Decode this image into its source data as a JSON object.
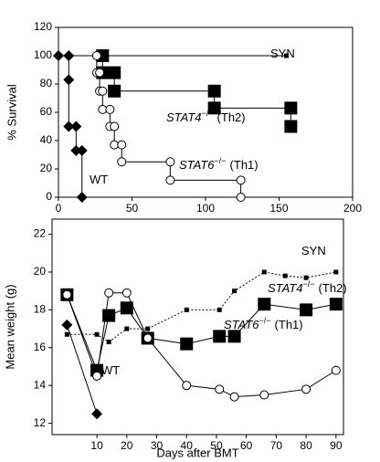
{
  "chart_data": [
    {
      "type": "line",
      "step": true,
      "ylabel": "% Survival",
      "xlim": [
        0,
        200
      ],
      "xticks": [
        0,
        50,
        100,
        150,
        200
      ],
      "ylim": [
        0,
        120
      ],
      "yticks": [
        0,
        20,
        40,
        60,
        80,
        100,
        120
      ],
      "series": [
        {
          "name": "SYN",
          "color": "#000000",
          "marker": "small-square",
          "dash": false,
          "x": [
            0,
            155
          ],
          "values": [
            100,
            100
          ]
        },
        {
          "name": "WT",
          "color": "#000000",
          "marker": "diamond",
          "dash": false,
          "x": [
            0,
            7,
            7,
            7,
            12,
            12,
            16,
            16
          ],
          "values": [
            100,
            100,
            83,
            50,
            50,
            33,
            33,
            0
          ]
        },
        {
          "name": "STAT4",
          "color": "#000000",
          "marker": "square",
          "dash": false,
          "x": [
            30,
            30,
            38,
            38,
            106,
            106,
            158,
            158
          ],
          "values": [
            100,
            88,
            88,
            75,
            75,
            63,
            63,
            50
          ]
        },
        {
          "name": "STAT6",
          "color": "#000000",
          "marker": "circle",
          "dash": false,
          "x": [
            26,
            26,
            28,
            28,
            30,
            30,
            35,
            35,
            38,
            38,
            43,
            43,
            76,
            76,
            124,
            124
          ],
          "values": [
            100,
            88,
            88,
            75,
            75,
            62,
            62,
            50,
            50,
            37,
            37,
            25,
            25,
            12,
            12,
            0
          ]
        }
      ],
      "annotations": [
        {
          "text": "SYN"
        },
        {
          "text": "STAT4",
          "sup": "−/−",
          "tail": "(Th2)"
        },
        {
          "text": "STAT6",
          "sup": "−/−",
          "tail": "(Th1)"
        },
        {
          "text": "WT"
        }
      ]
    },
    {
      "type": "line",
      "step": false,
      "ylabel": "Mean weight (g)",
      "xlabel": "Days after BMT",
      "xlim": [
        -5,
        92.5
      ],
      "xticks": [
        10,
        20,
        30,
        40,
        50,
        60,
        70,
        80,
        90
      ],
      "ylim": [
        11.4,
        22.8
      ],
      "yticks": [
        12,
        14,
        16,
        18,
        20,
        22
      ],
      "series": [
        {
          "name": "SYN",
          "color": "#000000",
          "marker": "small-square",
          "dash": true,
          "x": [
            0,
            10,
            14,
            20,
            27,
            40,
            51,
            56,
            66,
            73,
            80,
            90
          ],
          "values": [
            16.7,
            16.7,
            16.3,
            17,
            17,
            18,
            18,
            19,
            20,
            19.8,
            19.7,
            20
          ]
        },
        {
          "name": "STAT4",
          "color": "#000000",
          "marker": "square",
          "dash": false,
          "x": [
            0,
            10,
            14,
            20,
            27,
            40,
            51,
            56,
            66,
            80,
            90
          ],
          "values": [
            18.8,
            14.8,
            17.7,
            18.1,
            16.5,
            16.2,
            16.6,
            16.6,
            18.3,
            18,
            18.3
          ]
        },
        {
          "name": "STAT6",
          "color": "#000000",
          "marker": "circle",
          "dash": false,
          "x": [
            0,
            10,
            14,
            20,
            27,
            40,
            51,
            56,
            66,
            80,
            90
          ],
          "values": [
            18.8,
            14.5,
            18.9,
            18.9,
            16.5,
            14,
            13.8,
            13.4,
            13.5,
            13.8,
            14.8
          ]
        },
        {
          "name": "WT",
          "color": "#000000",
          "marker": "diamond",
          "dash": false,
          "x": [
            0,
            10
          ],
          "values": [
            17.2,
            12.5
          ]
        }
      ],
      "annotations": [
        {
          "text": "SYN"
        },
        {
          "text": "STAT4",
          "sup": "−/−",
          "tail": "(Th2)"
        },
        {
          "text": "STAT6",
          "sup": "−/−",
          "tail": "(Th1)"
        },
        {
          "text": "WT"
        }
      ]
    }
  ]
}
